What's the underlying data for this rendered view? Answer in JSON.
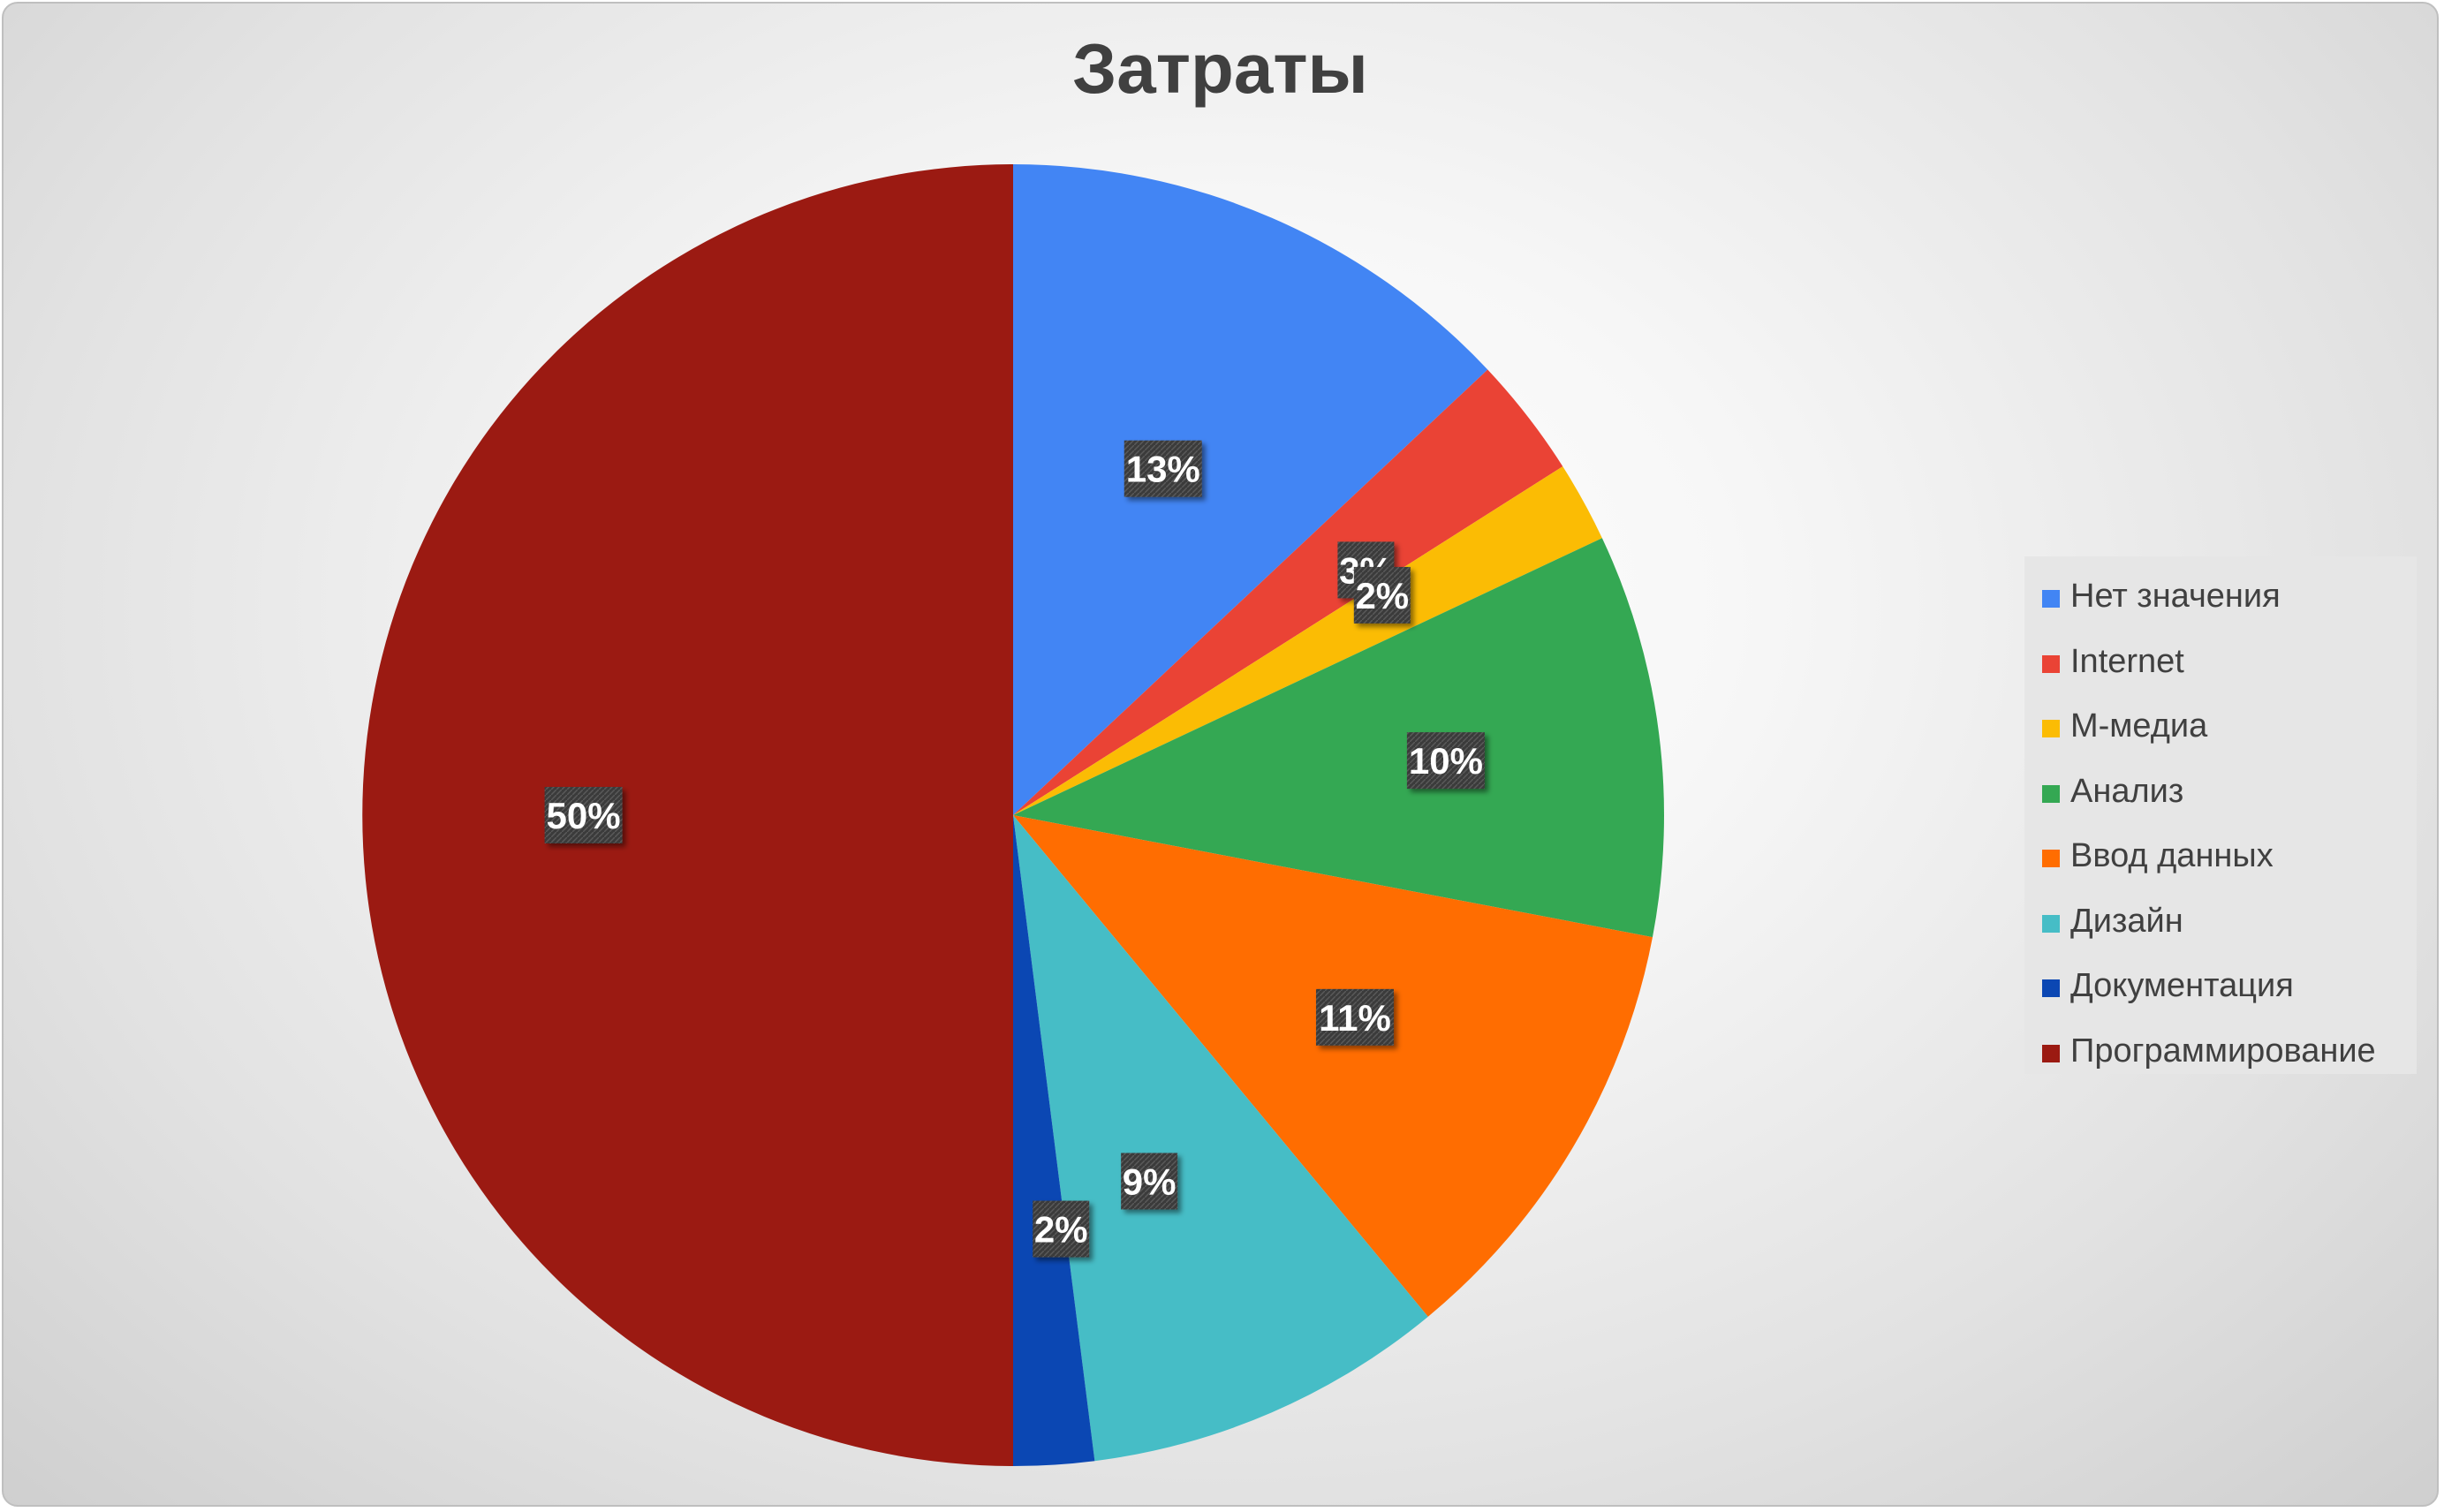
{
  "chart_data": {
    "type": "pie",
    "title": "Затраты",
    "legend_position": "right",
    "slices": [
      {
        "label": "Нет значения",
        "value": 13,
        "data_label": "13%",
        "color": "#4285F4"
      },
      {
        "label": "Internet",
        "value": 3,
        "data_label": "3%",
        "color": "#EA4335"
      },
      {
        "label": "М-медиа",
        "value": 2,
        "data_label": "2%",
        "color": "#FBBC04"
      },
      {
        "label": "Анализ",
        "value": 10,
        "data_label": "10%",
        "color": "#34A853"
      },
      {
        "label": "Ввод данных",
        "value": 11,
        "data_label": "11%",
        "color": "#FF6D01"
      },
      {
        "label": "Дизайн",
        "value": 9,
        "data_label": "9%",
        "color": "#46BDC6"
      },
      {
        "label": "Документация",
        "value": 2,
        "data_label": "2%",
        "color": "#0B47B3"
      },
      {
        "label": "Программирование",
        "value": 50,
        "data_label": "50%",
        "color": "#9B1A12"
      }
    ]
  }
}
